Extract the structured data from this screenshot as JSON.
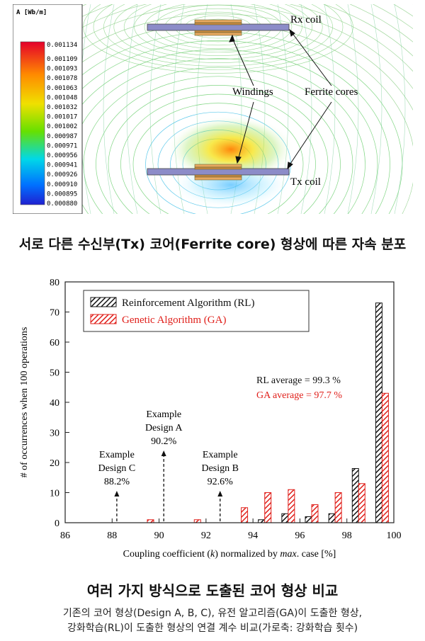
{
  "figure1": {
    "legend_title": "A [Wb/m]",
    "legend_values": [
      "0.001134",
      "0.001109",
      "0.001093",
      "0.001078",
      "0.001063",
      "0.001048",
      "0.001032",
      "0.001017",
      "0.001002",
      "0.000987",
      "0.000971",
      "0.000956",
      "0.000941",
      "0.000926",
      "0.000910",
      "0.000895",
      "0.000880"
    ],
    "labels": {
      "rx": "Rx coil",
      "tx": "Tx coil",
      "windings": "Windings",
      "ferrite": "Ferrite cores"
    },
    "caption": "서로 다른 수신부(Tx) 코어(Ferrite core) 형상에 따른 자속 분포"
  },
  "chart_data": {
    "type": "bar",
    "xlabel_parts": [
      "Coupling coefficient (",
      "k",
      ") normalized by ",
      "max",
      ". case  [%]"
    ],
    "ylabel": "# of occurrences when 100 operations",
    "xlim": [
      86,
      100
    ],
    "ylim": [
      0,
      80
    ],
    "x_ticks": [
      "86",
      "88",
      "90",
      "92",
      "94",
      "96",
      "98",
      "100"
    ],
    "y_ticks": [
      "0",
      "10",
      "20",
      "30",
      "40",
      "50",
      "60",
      "70",
      "80"
    ],
    "legend_position": "top-left",
    "series": [
      {
        "name": "Reinforcement Algorithm (RL)",
        "color": "#111111",
        "x": [
          89.5,
          91.5,
          93.5,
          94.5,
          95.5,
          96.5,
          97.5,
          98.5,
          99.5
        ],
        "values": [
          0,
          0,
          0,
          1,
          3,
          2,
          3,
          18,
          73
        ]
      },
      {
        "name": "Genetic Algorithm (GA)",
        "color": "#e0201b",
        "x": [
          89.5,
          91.5,
          93.5,
          94.5,
          95.5,
          96.5,
          97.5,
          98.5,
          99.5
        ],
        "values": [
          1,
          1,
          5,
          10,
          11,
          6,
          10,
          13,
          43
        ]
      }
    ],
    "annotations": [
      {
        "lines": [
          "Example",
          "Design A",
          "90.2%"
        ],
        "x": 90.2
      },
      {
        "lines": [
          "Example",
          "Design B",
          "92.6%"
        ],
        "x": 92.6
      },
      {
        "lines": [
          "Example",
          "Design C",
          "88.2%"
        ],
        "x": 88.2
      }
    ],
    "rl_average": "RL average = 99.3 %",
    "ga_average": "GA average = 97.7 %"
  },
  "caption2": "여러 가지 방식으로 도출된 코어 형상 비교",
  "caption3_lines": [
    "기존의 코어 형상(Design A, B, C), 유전 알고리즘(GA)이 도출한 형상,",
    "강화학습(RL)이 도출한 형상의 연결 계수 비교(가로축: 강화학습 횟수)"
  ]
}
